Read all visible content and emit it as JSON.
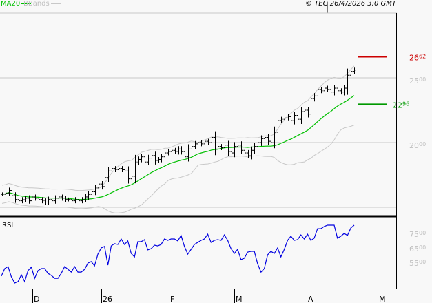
{
  "header": {
    "ma_label": "MA20",
    "bbands_label": "BBands",
    "copyright": "© TEC 26/4/2026 3:0 GMT"
  },
  "colors": {
    "ma": "#00c000",
    "bbands": "#c8c8c8",
    "rsi": "#0000e0",
    "bars": "#000000",
    "resistance": "#cc0000",
    "support": "#009900",
    "axis_text": "#c0c0c0"
  },
  "chart_data": [
    {
      "type": "ohlc",
      "ylim": [
        15,
        30
      ],
      "y_ticks": [
        {
          "int": "25",
          "dec": "00"
        },
        {
          "int": "20",
          "dec": "00"
        }
      ],
      "overlays": [
        "MA20",
        "BBands"
      ],
      "closes": [
        16.0,
        16.1,
        16.3,
        15.9,
        15.6,
        15.5,
        15.6,
        15.7,
        15.5,
        15.8,
        15.7,
        15.6,
        15.5,
        15.4,
        15.6,
        15.5,
        15.7,
        15.8,
        15.7,
        15.6,
        15.6,
        15.5,
        15.6,
        15.5,
        15.6,
        15.8,
        16.0,
        16.2,
        16.5,
        16.8,
        16.6,
        17.3,
        17.8,
        18.0,
        17.9,
        18.0,
        17.9,
        17.8,
        17.2,
        17.4,
        18.5,
        18.7,
        18.9,
        18.5,
        18.8,
        19.0,
        18.6,
        18.7,
        18.9,
        19.2,
        19.3,
        19.4,
        19.3,
        19.5,
        19.3,
        18.9,
        19.5,
        19.7,
        19.9,
        20.0,
        19.9,
        20.1,
        20.0,
        20.4,
        19.5,
        19.7,
        19.6,
        19.8,
        19.3,
        19.2,
        19.7,
        19.8,
        19.4,
        19.2,
        19.0,
        19.4,
        19.7,
        20.0,
        20.3,
        20.4,
        20.1,
        20.0,
        20.8,
        21.7,
        21.8,
        21.9,
        22.0,
        21.7,
        22.1,
        21.8,
        22.4,
        22.5,
        22.2,
        23.4,
        23.6,
        24.1,
        24.0,
        24.2,
        24.1,
        23.9,
        24.2,
        24.0,
        23.9,
        24.2,
        25.2,
        25.5,
        25.6
      ],
      "levels": [
        {
          "value": 26.62,
          "int": "26",
          "dec": "62",
          "kind": "resistance"
        },
        {
          "value": 22.96,
          "int": "22",
          "dec": "96",
          "kind": "support"
        }
      ],
      "x_labels": [
        "D",
        "26",
        "F",
        "M",
        "A",
        "M"
      ]
    },
    {
      "type": "line",
      "title": "RSI",
      "y_ticks": [
        {
          "int": "75",
          "dec": "00",
          "v": 75
        },
        {
          "int": "65",
          "dec": "00",
          "v": 65
        },
        {
          "int": "55",
          "dec": "00",
          "v": 55
        }
      ],
      "values": [
        45.5,
        50.7,
        52.1,
        45,
        40.7,
        41.7,
        46.4,
        41.7,
        49.3,
        51.7,
        44,
        49.3,
        50.7,
        50.7,
        47.4,
        46,
        44,
        44,
        47.4,
        52.1,
        50.2,
        48.3,
        52.1,
        48.3,
        48.3,
        50.2,
        54.5,
        55.5,
        52.6,
        60.7,
        65,
        66,
        53.1,
        66.4,
        67.9,
        67.4,
        71.2,
        67.4,
        69.8,
        61.2,
        58.8,
        69.3,
        69.3,
        70.7,
        63.6,
        64.5,
        66.9,
        66.4,
        67.4,
        71.2,
        70.2,
        71.2,
        71.2,
        69.8,
        73.6,
        66,
        60.7,
        64,
        67.4,
        68.8,
        70.2,
        71.2,
        74.5,
        68.8,
        70.2,
        70.7,
        70.2,
        74,
        70.2,
        64.5,
        61.2,
        64,
        56.9,
        57.9,
        62.1,
        62.6,
        62.6,
        54,
        48.3,
        50.7,
        60.2,
        62.6,
        61.2,
        65,
        58.8,
        64,
        70.2,
        73.1,
        70.2,
        70.7,
        74,
        71.2,
        74.5,
        70.2,
        71.7,
        78.3,
        78.3,
        79.8,
        80.7,
        80.7,
        80.7,
        71.7,
        73.1,
        75,
        73.6,
        78.8,
        80.7
      ]
    }
  ]
}
